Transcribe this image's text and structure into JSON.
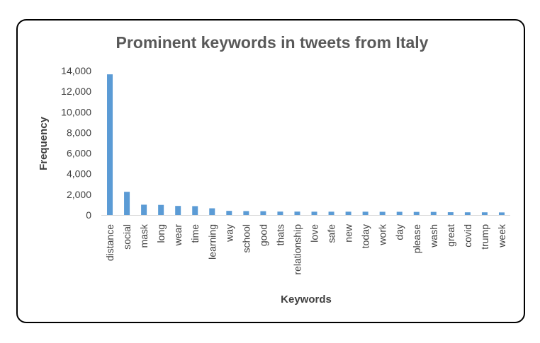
{
  "chart_data": {
    "type": "bar",
    "title": "Prominent keywords in tweets from Italy",
    "xlabel": "Keywords",
    "ylabel": "Frequency",
    "ylim": [
      0,
      14000
    ],
    "yticks": [
      0,
      2000,
      4000,
      6000,
      8000,
      10000,
      12000,
      14000
    ],
    "ytick_labels": [
      "0",
      "2,000",
      "4,000",
      "6,000",
      "8,000",
      "10,000",
      "12,000",
      "14,000"
    ],
    "grid": false,
    "legend": "none",
    "bar_color": "#5b9bd5",
    "categories": [
      "distance",
      "social",
      "mask",
      "long",
      "wear",
      "time",
      "learning",
      "way",
      "school",
      "good",
      "thats",
      "relationship",
      "love",
      "safe",
      "new",
      "today",
      "work",
      "day",
      "please",
      "wash",
      "great",
      "covid",
      "trump",
      "week"
    ],
    "values": [
      13650,
      2250,
      1000,
      980,
      880,
      860,
      650,
      400,
      380,
      370,
      330,
      330,
      320,
      320,
      320,
      320,
      310,
      310,
      300,
      300,
      270,
      260,
      260,
      250
    ]
  }
}
